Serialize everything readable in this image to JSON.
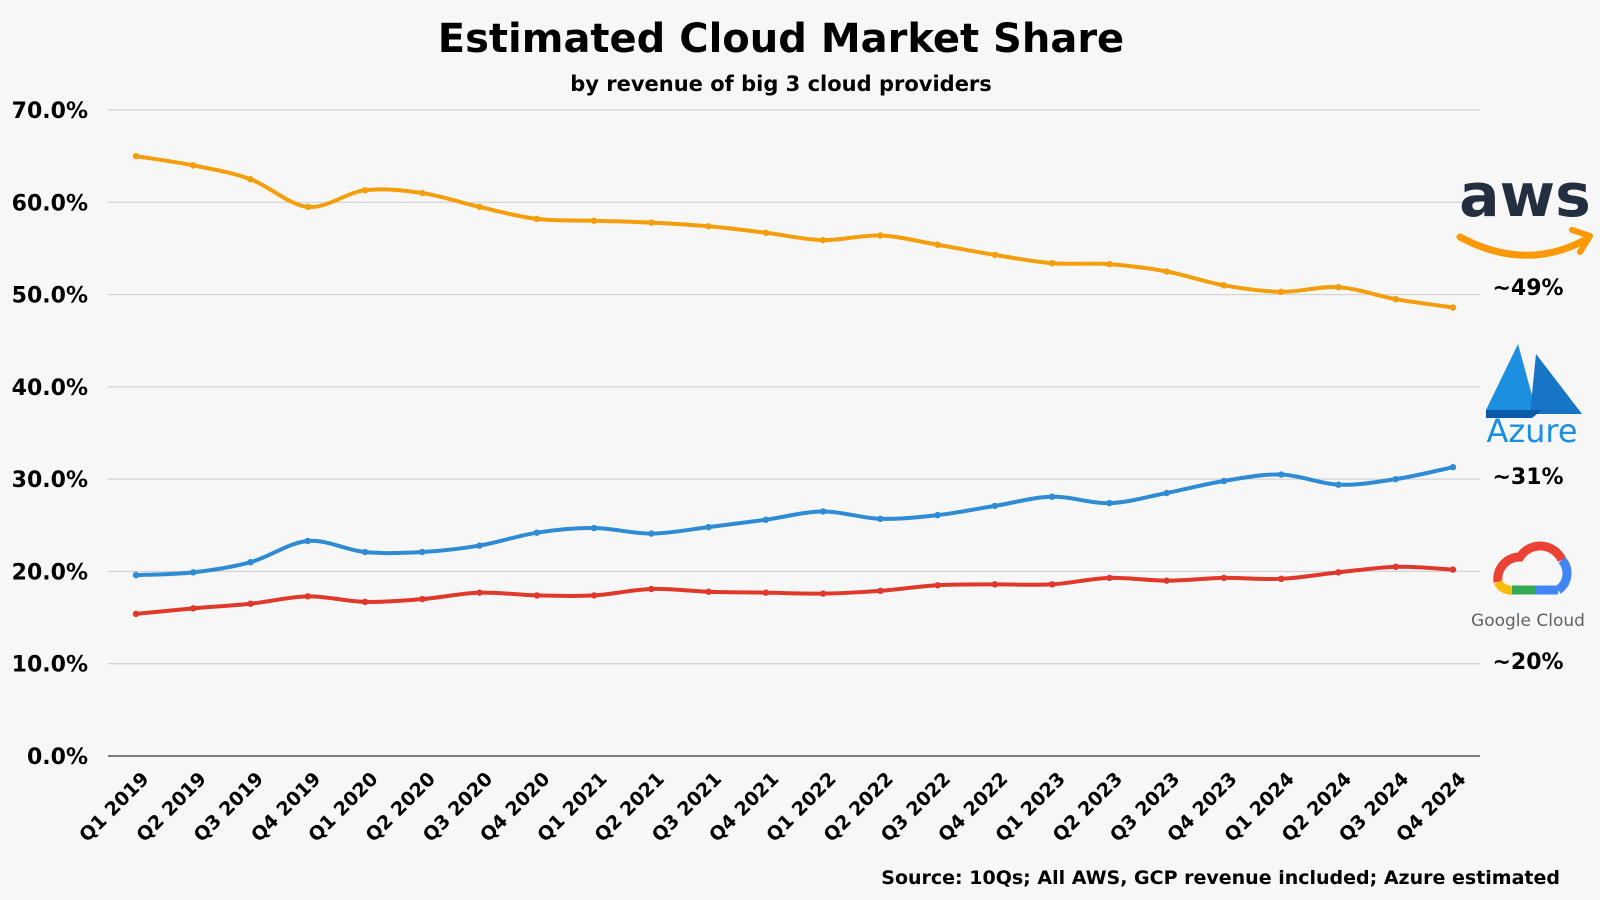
{
  "chart_data": {
    "type": "line",
    "title": "Estimated Cloud Market Share",
    "subtitle": "by revenue of big 3 cloud providers",
    "xlabel": "",
    "ylabel": "",
    "ylim": [
      0,
      70
    ],
    "y_ticks": [
      "0.0%",
      "10.0%",
      "20.0%",
      "30.0%",
      "40.0%",
      "50.0%",
      "60.0%",
      "70.0%"
    ],
    "grid": "horizontal",
    "categories": [
      "Q1 2019",
      "Q2 2019",
      "Q3 2019",
      "Q4 2019",
      "Q1 2020",
      "Q2 2020",
      "Q3 2020",
      "Q4 2020",
      "Q1 2021",
      "Q2 2021",
      "Q3 2021",
      "Q4 2021",
      "Q1 2022",
      "Q2 2022",
      "Q3 2022",
      "Q4 2022",
      "Q1 2023",
      "Q2 2023",
      "Q3 2023",
      "Q4 2023",
      "Q1 2024",
      "Q2 2024",
      "Q3 2024",
      "Q4 2024"
    ],
    "series": [
      {
        "name": "aws",
        "color": "#f59e0b",
        "end_label": "~49%",
        "values": [
          65.0,
          64.0,
          62.5,
          59.5,
          61.3,
          61.0,
          59.5,
          58.2,
          58.0,
          57.8,
          57.4,
          56.7,
          55.9,
          56.4,
          55.4,
          54.3,
          53.4,
          53.3,
          52.5,
          51.0,
          50.3,
          50.8,
          49.5,
          48.6
        ]
      },
      {
        "name": "Azure",
        "color": "#2e8bd4",
        "end_label": "~31%",
        "values": [
          19.6,
          19.9,
          21.0,
          23.3,
          22.1,
          22.1,
          22.8,
          24.2,
          24.7,
          24.1,
          24.8,
          25.6,
          26.5,
          25.7,
          26.1,
          27.1,
          28.1,
          27.4,
          28.5,
          29.8,
          30.5,
          29.4,
          30.0,
          31.3
        ]
      },
      {
        "name": "Google Cloud",
        "color": "#e0392b",
        "end_label": "~20%",
        "values": [
          15.4,
          16.0,
          16.5,
          17.3,
          16.7,
          17.0,
          17.7,
          17.4,
          17.4,
          18.1,
          17.8,
          17.7,
          17.6,
          17.9,
          18.5,
          18.6,
          18.6,
          19.3,
          19.0,
          19.3,
          19.2,
          19.9,
          20.5,
          20.2
        ]
      }
    ],
    "source": "Source: 10Qs; All AWS, GCP revenue included; Azure estimated"
  }
}
